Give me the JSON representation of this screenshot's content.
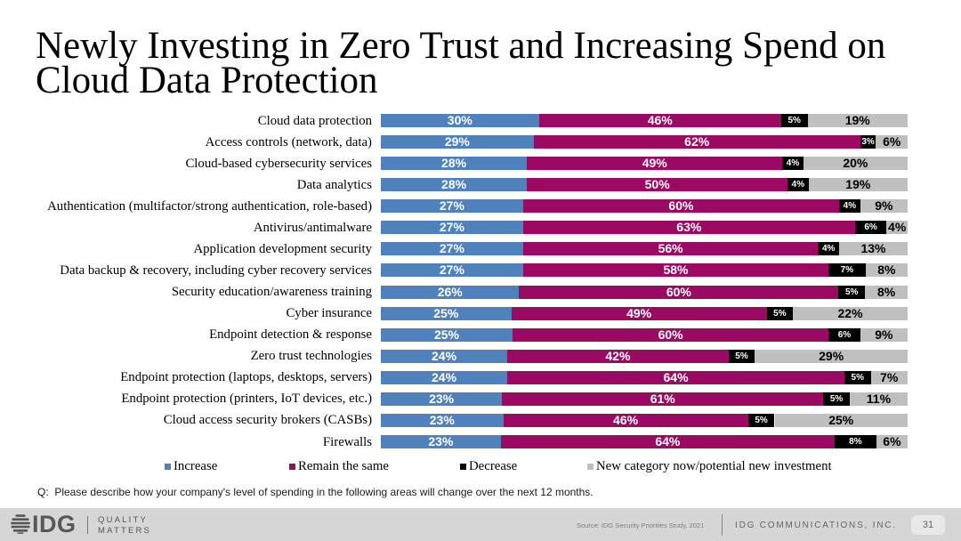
{
  "title": "Newly Investing in Zero Trust and Increasing Spend on Cloud Data Protection",
  "chart_data": {
    "type": "bar",
    "orientation": "horizontal",
    "stacked": true,
    "unit": "%",
    "xlim": [
      0,
      100
    ],
    "grid": false,
    "legend_position": "bottom",
    "categories": [
      "Cloud data protection",
      "Access controls (network, data)",
      "Cloud-based cybersecurity services",
      "Data analytics",
      "Authentication (multifactor/strong authentication, role-based)",
      "Antivirus/antimalware",
      "Application development security",
      "Data backup & recovery, including cyber recovery services",
      "Security education/awareness training",
      "Cyber insurance",
      "Endpoint detection & response",
      "Zero trust technologies",
      "Endpoint protection (laptops, desktops, servers)",
      "Endpoint protection (printers, IoT devices, etc.)",
      "Cloud access security brokers (CASBs)",
      "Firewalls"
    ],
    "series": [
      {
        "name": "Increase",
        "color": "#4f81bd",
        "label_color": "#ffffff",
        "values": [
          30,
          29,
          28,
          28,
          27,
          27,
          27,
          27,
          26,
          25,
          25,
          24,
          24,
          23,
          23,
          23
        ]
      },
      {
        "name": "Remain the same",
        "color": "#9a0a62",
        "label_color": "#ffffff",
        "values": [
          46,
          62,
          49,
          50,
          60,
          63,
          56,
          58,
          60,
          49,
          60,
          42,
          64,
          61,
          46,
          64
        ]
      },
      {
        "name": "Decrease",
        "color": "#000000",
        "label_color": "#ffffff",
        "values": [
          5,
          3,
          4,
          4,
          4,
          6,
          4,
          7,
          5,
          5,
          6,
          5,
          5,
          5,
          5,
          8
        ]
      },
      {
        "name": "New category now/potential new investment",
        "color": "#bfbfbf",
        "label_color": "#000000",
        "values": [
          19,
          6,
          20,
          19,
          9,
          4,
          13,
          8,
          8,
          22,
          9,
          29,
          7,
          11,
          25,
          6
        ]
      }
    ]
  },
  "footnote": "Q:  Please describe how your company's level of spending in the following areas will change over the next 12 months.",
  "footer": {
    "logo_icon": "globe-icon",
    "logo_text": "IDG",
    "tagline_line1": "QUALITY",
    "tagline_line2": "MATTERS",
    "source": "Source: IDG Security Priorities Study, 2021",
    "company": "IDG COMMUNICATIONS, INC.",
    "page_number": "31"
  }
}
